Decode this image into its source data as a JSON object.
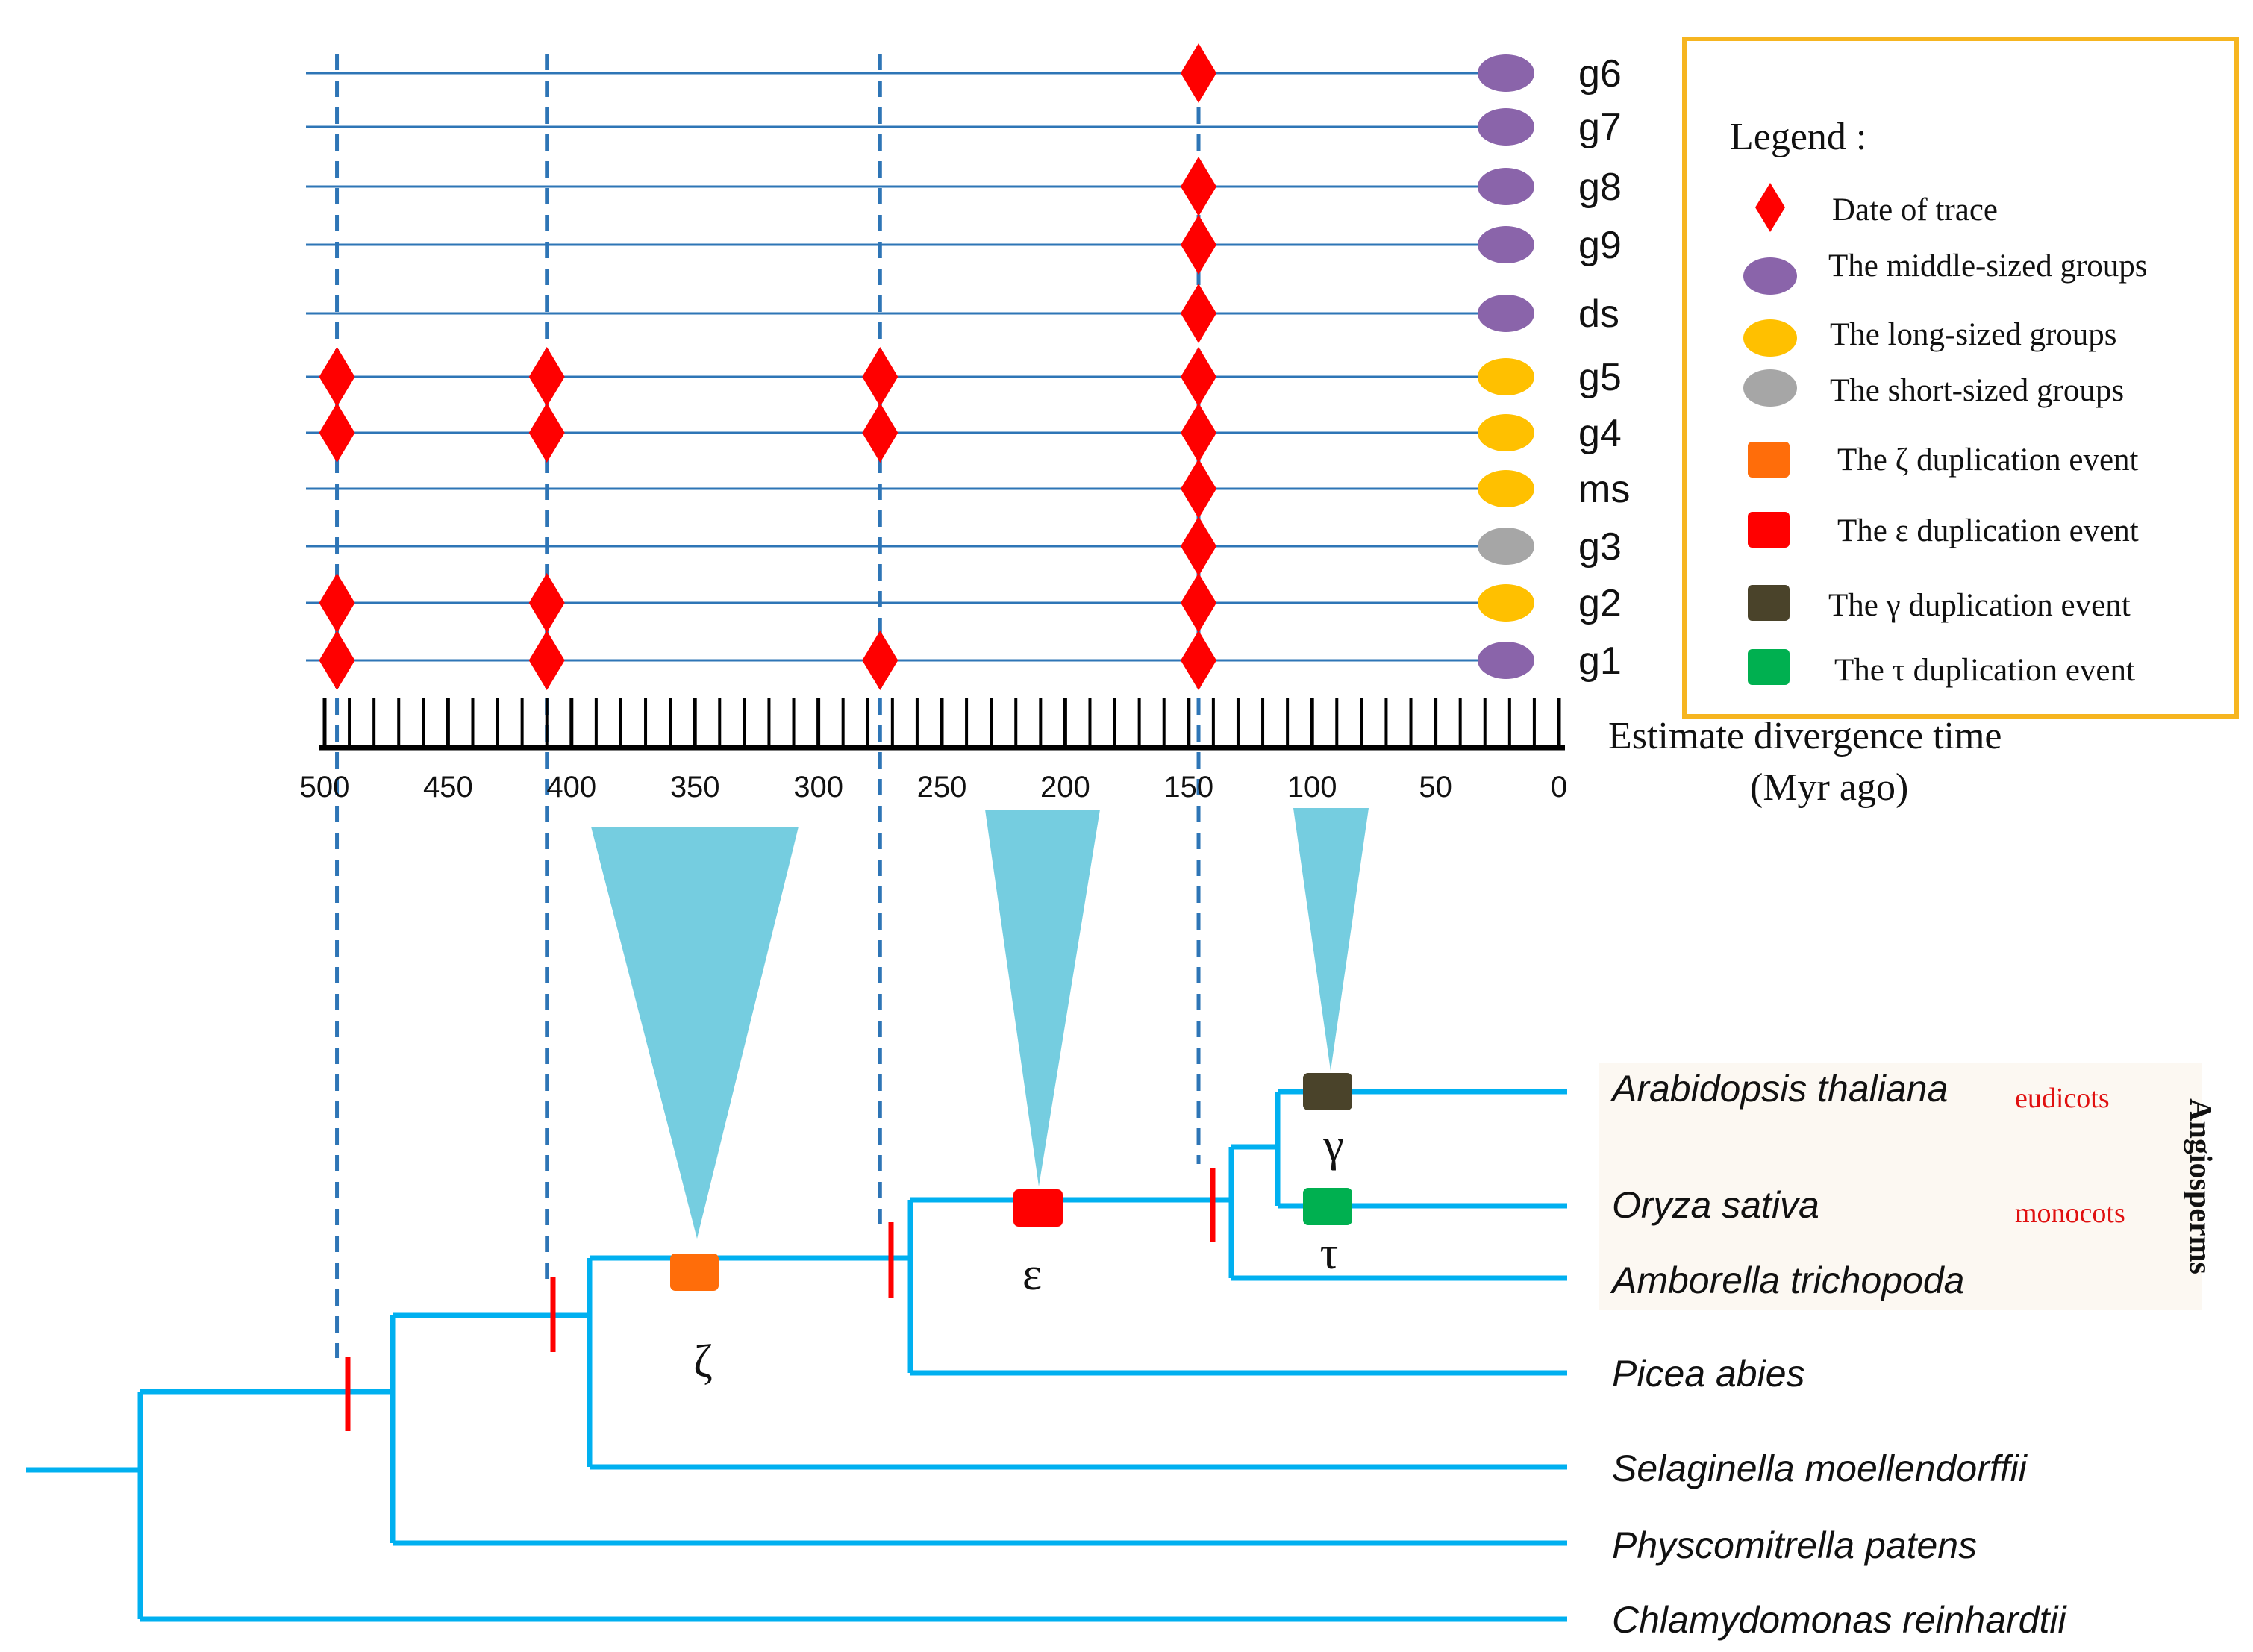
{
  "timeline": {
    "rows": [
      {
        "label": "g6",
        "group": "middle",
        "traces": [
          146
        ]
      },
      {
        "label": "g7",
        "group": "middle",
        "traces": []
      },
      {
        "label": "g8",
        "group": "middle",
        "traces": [
          146
        ]
      },
      {
        "label": "g9",
        "group": "middle",
        "traces": [
          146
        ]
      },
      {
        "label": "ds",
        "group": "middle",
        "traces": [
          146
        ]
      },
      {
        "label": "g5",
        "group": "long",
        "traces": [
          495,
          410,
          275,
          146
        ]
      },
      {
        "label": "g4",
        "group": "long",
        "traces": [
          495,
          410,
          275,
          146
        ]
      },
      {
        "label": "ms",
        "group": "long",
        "traces": [
          146
        ]
      },
      {
        "label": "g3",
        "group": "short",
        "traces": [
          146
        ]
      },
      {
        "label": "g2",
        "group": "long",
        "traces": [
          495,
          410,
          146
        ]
      },
      {
        "label": "g1",
        "group": "middle",
        "traces": [
          495,
          410,
          275,
          146
        ]
      }
    ],
    "dashed_dates": [
      495,
      410,
      275,
      146
    ],
    "axis": {
      "range": [
        500,
        0
      ],
      "ticks": [
        500,
        450,
        400,
        350,
        300,
        250,
        200,
        150,
        100,
        50,
        0
      ],
      "minor_step": 10,
      "title_line1": "Estimate divergence time",
      "title_line2": "(Myr  ago)"
    }
  },
  "legend": {
    "title": "Legend :",
    "items": [
      {
        "symbol": "diamond",
        "color": "#ff0000",
        "label": "Date of trace"
      },
      {
        "symbol": "ellipse",
        "color": "#8a64aa",
        "label": "The middle-sized groups"
      },
      {
        "symbol": "ellipse",
        "color": "#ffc000",
        "label": "The long-sized  groups"
      },
      {
        "symbol": "ellipse",
        "color": "#a6a6a6",
        "label": "The short-sized groups"
      },
      {
        "symbol": "square",
        "color": "#ff6d0a",
        "label": "The ζ duplication event"
      },
      {
        "symbol": "square",
        "color": "#ff0000",
        "label": "The ε duplication event"
      },
      {
        "symbol": "square",
        "color": "#4a432a",
        "label": "The γ duplication event"
      },
      {
        "symbol": "square",
        "color": "#00b050",
        "label": "The τ duplication event"
      }
    ]
  },
  "colors": {
    "timeline_line": "#2e75b6",
    "tree_line": "#00b0f0",
    "wedge": "#75cde0",
    "legend_border": "#f6b520",
    "marker": "#ff0000",
    "group": {
      "middle": "#8a64aa",
      "long": "#ffc000",
      "short": "#a6a6a6"
    }
  },
  "events": [
    {
      "symbol": "ζ",
      "name": "zeta",
      "color": "#ff6d0a"
    },
    {
      "symbol": "ε",
      "name": "epsilon",
      "color": "#ff0000"
    },
    {
      "symbol": "γ",
      "name": "gamma",
      "color": "#4a432a"
    },
    {
      "symbol": "τ",
      "name": "tau",
      "color": "#00b050"
    }
  ],
  "tree": {
    "species": [
      "Arabidopsis thaliana",
      "Oryza sativa",
      "Amborella trichopoda",
      "Picea abies",
      "Selaginella moellendorffii",
      "Physcomitrella patens",
      "Chlamydomonas reinhardtii"
    ],
    "clade_labels": {
      "eudicots": "eudicots",
      "monocots": "monocots"
    },
    "group_label": "Angiosperms"
  }
}
